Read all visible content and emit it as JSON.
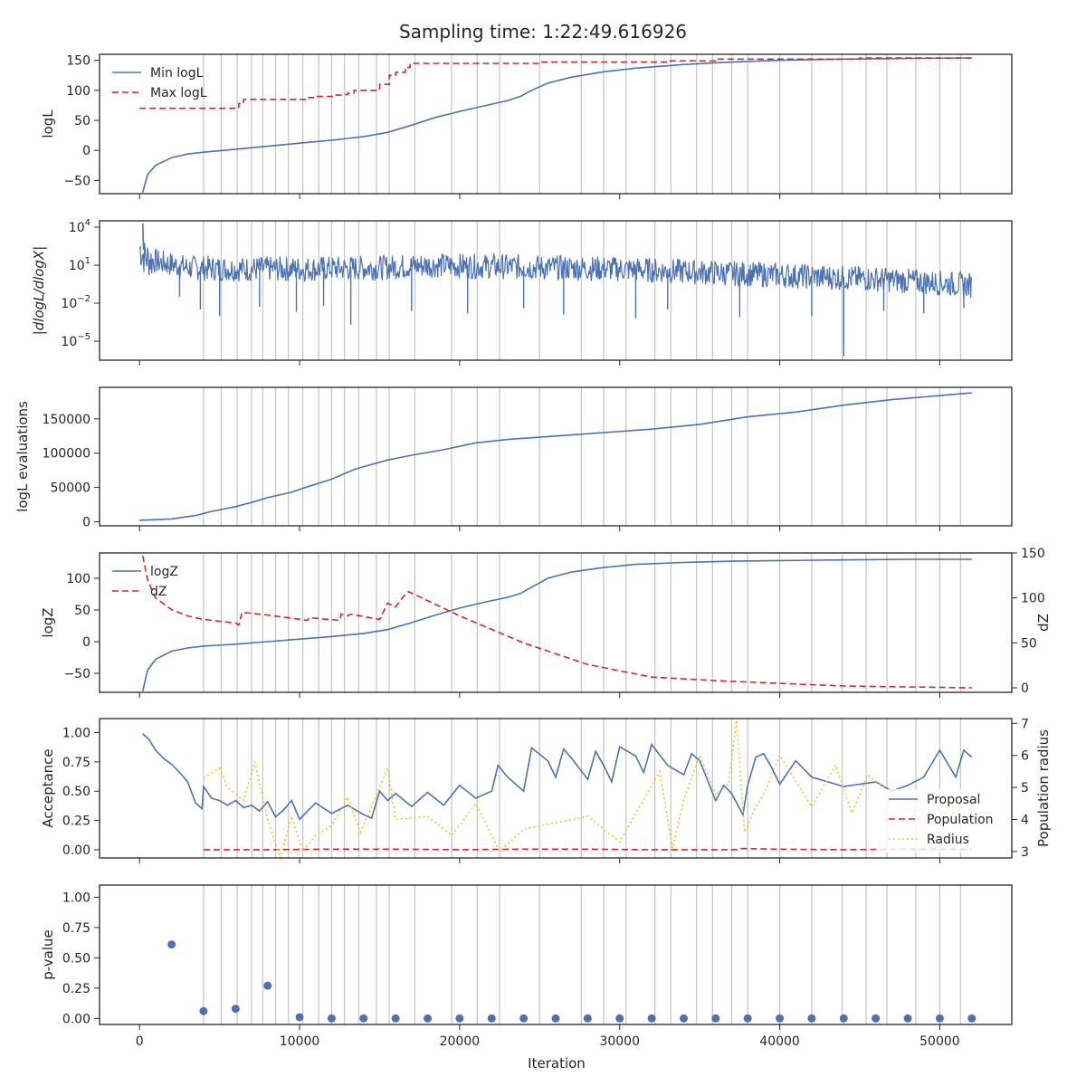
{
  "title": "Sampling time: 1:22:49.616926",
  "colors": {
    "blue": "#4c72b0",
    "red": "#d62728",
    "yellow": "#f2c12e",
    "vline": "#c8c8c8",
    "text": "#262626"
  },
  "xaxis": {
    "label": "Iteration",
    "ticks": [
      0,
      10000,
      20000,
      30000,
      40000,
      50000
    ],
    "tick_labels": [
      "0",
      "10000",
      "20000",
      "30000",
      "40000",
      "50000"
    ],
    "range": [
      -2500,
      54500
    ]
  },
  "chart_data": [
    {
      "type": "line",
      "ylabel": "logL",
      "ylim": [
        -72,
        160
      ],
      "yticks": [
        -50,
        0,
        50,
        100,
        150
      ],
      "ytick_labels": [
        "−50",
        "0",
        "50",
        "100",
        "150"
      ],
      "legend_position": "upper-left",
      "series": [
        {
          "name": "Min logL",
          "style": "solid",
          "color": "blue",
          "x": [
            200,
            500,
            1000,
            2000,
            3000,
            4000,
            6000,
            8000,
            10000,
            12000,
            14000,
            15500,
            17000,
            18500,
            20000,
            21500,
            23000,
            23800,
            24500,
            25500,
            27000,
            29000,
            31000,
            34000,
            37000,
            40000,
            44000,
            48000,
            52000
          ],
          "y": [
            -70,
            -40,
            -25,
            -12,
            -6,
            -3,
            2,
            7,
            12,
            17,
            23,
            30,
            42,
            55,
            65,
            74,
            83,
            90,
            100,
            112,
            122,
            131,
            137,
            143,
            147,
            150,
            152,
            153,
            154
          ]
        },
        {
          "name": "Max logL",
          "style": "dashed",
          "color": "red",
          "x": [
            0,
            6200,
            6200,
            6500,
            6500,
            10500,
            10500,
            11000,
            11000,
            12200,
            12200,
            12800,
            12800,
            13000,
            13000,
            13400,
            13400,
            15000,
            15000,
            15600,
            15600,
            16000,
            16000,
            16600,
            16600,
            16900,
            16900,
            25000,
            25000,
            33000,
            33000,
            36000,
            36000,
            45000,
            45000,
            52000
          ],
          "y": [
            70,
            70,
            78,
            78,
            85,
            85,
            88,
            88,
            90,
            90,
            92,
            92,
            93,
            93,
            95,
            95,
            100,
            100,
            110,
            110,
            125,
            125,
            130,
            130,
            138,
            138,
            145,
            145,
            147,
            147,
            149,
            149,
            152,
            152,
            154,
            154
          ]
        }
      ]
    },
    {
      "type": "line",
      "ylabel": "|dlogL/dlogX|",
      "yscale": "log",
      "ylim_log10": [
        -6.5,
        4.5
      ],
      "yticks_exponent": [
        4,
        1,
        -2,
        -5
      ],
      "series": [
        {
          "name": "",
          "style": "solid",
          "color": "blue",
          "x": [
            0,
            300,
            1000,
            3000,
            6000,
            10000,
            15000,
            18000,
            22000,
            26000,
            30000,
            34000,
            38000,
            42000,
            46000,
            50000,
            52000
          ],
          "y_center_log10": [
            2.5,
            1.8,
            1.4,
            0.9,
            0.8,
            0.8,
            0.9,
            1.1,
            1.0,
            0.9,
            0.8,
            0.6,
            0.4,
            0.2,
            0.0,
            -0.3,
            -0.5
          ],
          "spikes": [
            {
              "x": 2500,
              "y_log10": -1.5
            },
            {
              "x": 3800,
              "y_log10": -2.5
            },
            {
              "x": 5000,
              "y_log10": -3.0
            },
            {
              "x": 7500,
              "y_log10": -2.3
            },
            {
              "x": 9800,
              "y_log10": -2.7
            },
            {
              "x": 13200,
              "y_log10": -3.7
            },
            {
              "x": 11500,
              "y_log10": -2.2
            },
            {
              "x": 17000,
              "y_log10": -2.6
            },
            {
              "x": 20500,
              "y_log10": -2.8
            },
            {
              "x": 24000,
              "y_log10": -2.4
            },
            {
              "x": 26500,
              "y_log10": -2.9
            },
            {
              "x": 31000,
              "y_log10": -3.2
            },
            {
              "x": 33000,
              "y_log10": -2.5
            },
            {
              "x": 37500,
              "y_log10": -3.1
            },
            {
              "x": 42000,
              "y_log10": -3.0
            },
            {
              "x": 44000,
              "y_log10": -6.2
            },
            {
              "x": 46500,
              "y_log10": -2.6
            },
            {
              "x": 49000,
              "y_log10": -2.8
            },
            {
              "x": 51500,
              "y_log10": -2.4
            }
          ]
        }
      ]
    },
    {
      "type": "line",
      "ylabel": "logL evaluations",
      "ylim": [
        -6000,
        196000
      ],
      "yticks": [
        0,
        50000,
        100000,
        150000
      ],
      "ytick_labels": [
        "0",
        "50000",
        "100000",
        "150000"
      ],
      "series": [
        {
          "name": "",
          "style": "solid",
          "color": "blue",
          "x": [
            0,
            2000,
            3500,
            4500,
            6000,
            7000,
            8000,
            9500,
            10500,
            12000,
            13500,
            15500,
            17000,
            19000,
            21000,
            23000,
            26000,
            29000,
            32000,
            35000,
            38000,
            41000,
            44000,
            47000,
            50000,
            52000
          ],
          "y": [
            2000,
            4000,
            9000,
            15000,
            22000,
            28000,
            35000,
            43000,
            51000,
            62000,
            77000,
            90000,
            97000,
            105000,
            115000,
            120000,
            125000,
            130000,
            135000,
            142000,
            153000,
            160000,
            170000,
            178000,
            184000,
            188000
          ]
        }
      ]
    },
    {
      "type": "line",
      "ylabel": "logZ",
      "ylabel_right": "dZ",
      "ylim": [
        -80,
        140
      ],
      "yticks": [
        -50,
        0,
        50,
        100
      ],
      "ytick_labels": [
        "−50",
        "0",
        "50",
        "100"
      ],
      "ylim_right": [
        -5,
        150
      ],
      "yticks_right": [
        0,
        50,
        100,
        150
      ],
      "ytick_labels_right": [
        "0",
        "50",
        "100",
        "150"
      ],
      "legend_position": "upper-left",
      "series": [
        {
          "name": "logZ",
          "style": "solid",
          "color": "blue",
          "axis": "left",
          "x": [
            200,
            500,
            1000,
            2000,
            3000,
            4000,
            6000,
            8000,
            10000,
            12000,
            14000,
            15500,
            17000,
            18500,
            20000,
            21500,
            23000,
            23800,
            24500,
            25500,
            27000,
            29000,
            31000,
            34000,
            37000,
            40000,
            44000,
            48000,
            52000
          ],
          "y": [
            -78,
            -45,
            -28,
            -15,
            -10,
            -7,
            -4,
            0,
            4,
            8,
            13,
            19,
            30,
            42,
            53,
            62,
            70,
            76,
            86,
            100,
            110,
            117,
            122,
            125,
            127,
            128,
            129,
            130,
            130
          ]
        },
        {
          "name": "dZ",
          "style": "dashed",
          "color": "red",
          "axis": "right",
          "x": [
            200,
            500,
            1000,
            2000,
            3000,
            4000,
            6000,
            6200,
            6400,
            8000,
            10500,
            10600,
            12500,
            12600,
            13000,
            13200,
            15000,
            15500,
            16000,
            16500,
            16800,
            20000,
            24000,
            28000,
            32000,
            36000,
            40000,
            44000,
            48000,
            52000
          ],
          "y": [
            147,
            120,
            100,
            87,
            80,
            76,
            72,
            70,
            84,
            81,
            75,
            78,
            75,
            82,
            80,
            82,
            76,
            94,
            90,
            102,
            107,
            80,
            50,
            26,
            12,
            8,
            5,
            2,
            1,
            0
          ]
        }
      ]
    },
    {
      "type": "line",
      "ylabel": "Acceptance",
      "ylabel_right": "Population radius",
      "ylim": [
        -0.07,
        1.12
      ],
      "yticks": [
        0.0,
        0.25,
        0.5,
        0.75,
        1.0
      ],
      "ytick_labels": [
        "0.00",
        "0.25",
        "0.50",
        "0.75",
        "1.00"
      ],
      "ylim_right": [
        2.8,
        7.15
      ],
      "yticks_right": [
        3,
        4,
        5,
        6,
        7
      ],
      "ytick_labels_right": [
        "3",
        "4",
        "5",
        "6",
        "7"
      ],
      "legend_position": "lower-right",
      "series": [
        {
          "name": "Proposal",
          "style": "solid",
          "color": "blue",
          "axis": "left",
          "x": [
            200,
            600,
            1000,
            1500,
            2000,
            2500,
            3000,
            3500,
            3900,
            4000,
            4500,
            5000,
            5500,
            6000,
            6500,
            7000,
            7500,
            8000,
            8500,
            9000,
            9500,
            10000,
            10500,
            11000,
            12000,
            13000,
            14000,
            14500,
            15000,
            15500,
            16000,
            17000,
            18000,
            19000,
            20000,
            21000,
            22000,
            22400,
            23000,
            24000,
            24500,
            25500,
            26000,
            26500,
            27000,
            28000,
            28500,
            29000,
            29500,
            30000,
            31000,
            31500,
            32000,
            33000,
            34000,
            34500,
            35000,
            36000,
            36500,
            37000,
            37700,
            38000,
            38500,
            39000,
            39500,
            40000,
            41000,
            42000,
            43000,
            44000,
            45000,
            46000,
            47000,
            48000,
            49000,
            50000,
            51000,
            51500,
            52000
          ],
          "y": [
            0.99,
            0.94,
            0.85,
            0.78,
            0.73,
            0.66,
            0.58,
            0.4,
            0.35,
            0.54,
            0.44,
            0.42,
            0.38,
            0.42,
            0.36,
            0.38,
            0.33,
            0.41,
            0.28,
            0.34,
            0.42,
            0.26,
            0.33,
            0.4,
            0.31,
            0.38,
            0.3,
            0.27,
            0.5,
            0.42,
            0.48,
            0.37,
            0.49,
            0.38,
            0.55,
            0.44,
            0.5,
            0.72,
            0.62,
            0.5,
            0.87,
            0.76,
            0.62,
            0.86,
            0.78,
            0.6,
            0.84,
            0.72,
            0.58,
            0.88,
            0.8,
            0.66,
            0.9,
            0.72,
            0.64,
            0.82,
            0.76,
            0.42,
            0.55,
            0.48,
            0.3,
            0.55,
            0.79,
            0.82,
            0.7,
            0.56,
            0.76,
            0.62,
            0.58,
            0.54,
            0.56,
            0.58,
            0.5,
            0.55,
            0.62,
            0.85,
            0.62,
            0.85,
            0.79
          ]
        },
        {
          "name": "Population",
          "style": "dashed",
          "color": "red",
          "axis": "left",
          "x": [
            4000,
            8000,
            12000,
            16000,
            20000,
            24000,
            28000,
            32000,
            36000,
            37500,
            37600,
            40000,
            44000,
            48000,
            52000
          ],
          "y": [
            0.0,
            0.0,
            0.005,
            0.005,
            0.0,
            0.005,
            0.005,
            0.0,
            0.0,
            0.0,
            0.01,
            0.005,
            0.0,
            0.005,
            0.005
          ]
        },
        {
          "name": "Radius",
          "style": "dotted",
          "color": "yellow",
          "axis": "right",
          "x": [
            4000,
            5000,
            5500,
            6500,
            7200,
            8000,
            8800,
            9500,
            10200,
            11000,
            12000,
            13000,
            13800,
            14500,
            15500,
            16000,
            18000,
            19500,
            21000,
            22500,
            24000,
            28000,
            30000,
            32500,
            33300,
            34000,
            35000,
            36000,
            36800,
            37300,
            37800,
            38500,
            39000,
            40000,
            41000,
            42000,
            43500,
            44500,
            45500,
            46500,
            48000,
            49500,
            51000,
            52000
          ],
          "y": [
            5.3,
            5.6,
            5.0,
            4.6,
            5.8,
            4.0,
            2.8,
            4.1,
            3.0,
            3.5,
            3.8,
            4.7,
            3.6,
            4.4,
            5.6,
            4.0,
            4.1,
            3.5,
            4.5,
            3.0,
            3.7,
            4.1,
            3.3,
            5.5,
            3.1,
            4.6,
            6.0,
            4.8,
            5.1,
            7.1,
            3.6,
            4.4,
            4.8,
            6.0,
            5.2,
            4.4,
            5.7,
            4.2,
            5.4,
            5.0,
            4.3,
            4.3,
            4.5,
            4.2
          ]
        }
      ]
    },
    {
      "type": "scatter",
      "ylabel": "p-value",
      "ylim": [
        -0.05,
        1.1
      ],
      "yticks": [
        0.0,
        0.25,
        0.5,
        0.75,
        1.0
      ],
      "ytick_labels": [
        "0.00",
        "0.25",
        "0.50",
        "0.75",
        "1.00"
      ],
      "series": [
        {
          "name": "",
          "color": "blue",
          "x": [
            2000,
            4000,
            6000,
            8000,
            10000,
            12000,
            14000,
            16000,
            18000,
            20000,
            22000,
            24000,
            26000,
            28000,
            30000,
            32000,
            34000,
            36000,
            38000,
            40000,
            42000,
            44000,
            46000,
            48000,
            50000,
            52000
          ],
          "y": [
            0.61,
            0.06,
            0.08,
            0.27,
            0.01,
            0.0,
            0.0,
            0.0,
            0.0,
            0.0,
            0.0,
            0.0,
            0.0,
            0.0,
            0.0,
            0.0,
            0.0,
            0.0,
            0.0,
            0.0,
            0.0,
            0.0,
            0.0,
            0.0,
            0.0,
            0.0
          ]
        }
      ]
    }
  ],
  "vlines": [
    4000,
    5100,
    6100,
    7000,
    7700,
    8500,
    9300,
    10200,
    11200,
    12000,
    12800,
    13700,
    14800,
    15600,
    17200,
    19500,
    21100,
    22500,
    25000,
    27600,
    29000,
    30400,
    32200,
    33200,
    34800,
    35800,
    37000,
    38000,
    40000,
    42000,
    43900,
    45400,
    46700,
    48500,
    50000,
    51300
  ]
}
